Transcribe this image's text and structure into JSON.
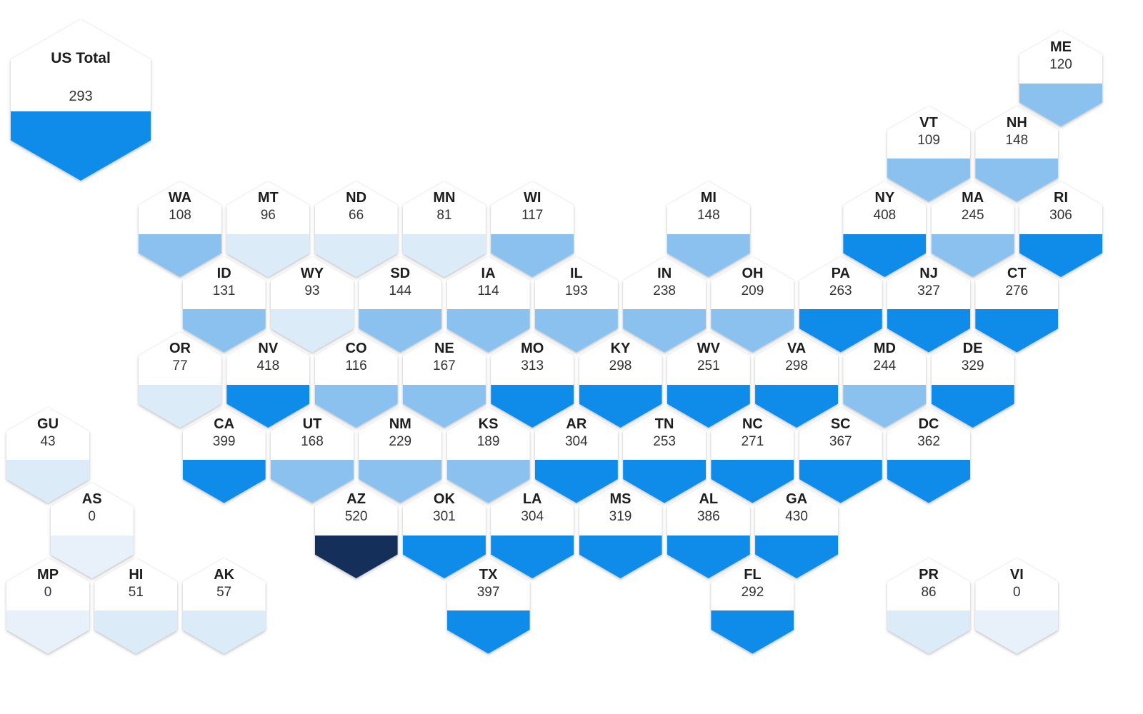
{
  "chart_data": {
    "type": "heatmap",
    "layout": "us-state-hex-tile-cartogram",
    "title": "",
    "legend": "none",
    "us_total": {
      "label": "US Total",
      "value": 293
    },
    "color_bins": [
      {
        "min": 0,
        "max": 0,
        "color": "#e8f1fa"
      },
      {
        "min": 1,
        "max": 99,
        "color": "#dcebf8"
      },
      {
        "min": 100,
        "max": 249,
        "color": "#8bc1ee"
      },
      {
        "min": 250,
        "max": 449,
        "color": "#0f8be9"
      },
      {
        "min": 450,
        "max": 9999,
        "color": "#132f5a"
      }
    ],
    "tiles": [
      {
        "code": "ME",
        "value": 120,
        "row": 0,
        "col": 10
      },
      {
        "code": "VT",
        "value": 109,
        "row": 1,
        "col": 8
      },
      {
        "code": "NH",
        "value": 148,
        "row": 1,
        "col": 9
      },
      {
        "code": "WA",
        "value": 108,
        "row": 2,
        "col": 0
      },
      {
        "code": "MT",
        "value": 96,
        "row": 2,
        "col": 1
      },
      {
        "code": "ND",
        "value": 66,
        "row": 2,
        "col": 2
      },
      {
        "code": "MN",
        "value": 81,
        "row": 2,
        "col": 3
      },
      {
        "code": "WI",
        "value": 117,
        "row": 2,
        "col": 4
      },
      {
        "code": "MI",
        "value": 148,
        "row": 2,
        "col": 6
      },
      {
        "code": "NY",
        "value": 408,
        "row": 2,
        "col": 8
      },
      {
        "code": "MA",
        "value": 245,
        "row": 2,
        "col": 9
      },
      {
        "code": "RI",
        "value": 306,
        "row": 2,
        "col": 10
      },
      {
        "code": "ID",
        "value": 131,
        "row": 3,
        "col": 0
      },
      {
        "code": "WY",
        "value": 93,
        "row": 3,
        "col": 1
      },
      {
        "code": "SD",
        "value": 144,
        "row": 3,
        "col": 2
      },
      {
        "code": "IA",
        "value": 114,
        "row": 3,
        "col": 3
      },
      {
        "code": "IL",
        "value": 193,
        "row": 3,
        "col": 4
      },
      {
        "code": "IN",
        "value": 238,
        "row": 3,
        "col": 5
      },
      {
        "code": "OH",
        "value": 209,
        "row": 3,
        "col": 6
      },
      {
        "code": "PA",
        "value": 263,
        "row": 3,
        "col": 7
      },
      {
        "code": "NJ",
        "value": 327,
        "row": 3,
        "col": 8
      },
      {
        "code": "CT",
        "value": 276,
        "row": 3,
        "col": 9
      },
      {
        "code": "OR",
        "value": 77,
        "row": 4,
        "col": 0
      },
      {
        "code": "NV",
        "value": 418,
        "row": 4,
        "col": 1
      },
      {
        "code": "CO",
        "value": 116,
        "row": 4,
        "col": 2
      },
      {
        "code": "NE",
        "value": 167,
        "row": 4,
        "col": 3
      },
      {
        "code": "MO",
        "value": 313,
        "row": 4,
        "col": 4
      },
      {
        "code": "KY",
        "value": 298,
        "row": 4,
        "col": 5
      },
      {
        "code": "WV",
        "value": 251,
        "row": 4,
        "col": 6
      },
      {
        "code": "VA",
        "value": 298,
        "row": 4,
        "col": 7
      },
      {
        "code": "MD",
        "value": 244,
        "row": 4,
        "col": 8
      },
      {
        "code": "DE",
        "value": 329,
        "row": 4,
        "col": 9
      },
      {
        "code": "GU",
        "value": 43,
        "row": 5,
        "col": -2
      },
      {
        "code": "CA",
        "value": 399,
        "row": 5,
        "col": 0
      },
      {
        "code": "UT",
        "value": 168,
        "row": 5,
        "col": 1
      },
      {
        "code": "NM",
        "value": 229,
        "row": 5,
        "col": 2
      },
      {
        "code": "KS",
        "value": 189,
        "row": 5,
        "col": 3
      },
      {
        "code": "AR",
        "value": 304,
        "row": 5,
        "col": 4
      },
      {
        "code": "TN",
        "value": 253,
        "row": 5,
        "col": 5
      },
      {
        "code": "NC",
        "value": 271,
        "row": 5,
        "col": 6
      },
      {
        "code": "SC",
        "value": 367,
        "row": 5,
        "col": 7
      },
      {
        "code": "DC",
        "value": 362,
        "row": 5,
        "col": 8
      },
      {
        "code": "AS",
        "value": 0,
        "row": 6,
        "col": -1
      },
      {
        "code": "AZ",
        "value": 520,
        "row": 6,
        "col": 2
      },
      {
        "code": "OK",
        "value": 301,
        "row": 6,
        "col": 3
      },
      {
        "code": "LA",
        "value": 304,
        "row": 6,
        "col": 4
      },
      {
        "code": "MS",
        "value": 319,
        "row": 6,
        "col": 5
      },
      {
        "code": "AL",
        "value": 386,
        "row": 6,
        "col": 6
      },
      {
        "code": "GA",
        "value": 430,
        "row": 6,
        "col": 7
      },
      {
        "code": "MP",
        "value": 0,
        "row": 7,
        "col": -2
      },
      {
        "code": "HI",
        "value": 51,
        "row": 7,
        "col": -1
      },
      {
        "code": "AK",
        "value": 57,
        "row": 7,
        "col": 0
      },
      {
        "code": "TX",
        "value": 397,
        "row": 7,
        "col": 3
      },
      {
        "code": "FL",
        "value": 292,
        "row": 7,
        "col": 6
      },
      {
        "code": "PR",
        "value": 86,
        "row": 7,
        "col": 8
      },
      {
        "code": "VI",
        "value": 0,
        "row": 7,
        "col": 9
      }
    ]
  }
}
